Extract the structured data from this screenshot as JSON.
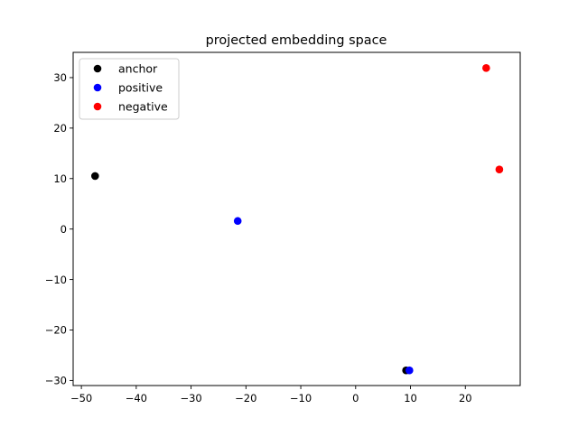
{
  "chart_data": {
    "type": "scatter",
    "title": "projected embedding space",
    "xlabel": "",
    "ylabel": "",
    "xlim": [
      -51.5,
      30.0
    ],
    "ylim": [
      -31.0,
      35.0
    ],
    "xticks": [
      -50,
      -40,
      -30,
      -20,
      -10,
      0,
      10,
      20
    ],
    "yticks": [
      -30,
      -20,
      -10,
      0,
      10,
      20,
      30
    ],
    "xtick_labels": [
      "−50",
      "−40",
      "−30",
      "−20",
      "−10",
      "0",
      "10",
      "20"
    ],
    "ytick_labels": [
      "−30",
      "−20",
      "−10",
      "0",
      "10",
      "20",
      "30"
    ],
    "grid": false,
    "legend_position": "top-left",
    "series": [
      {
        "name": "anchor",
        "color": "#000000",
        "points": [
          [
            -47.5,
            10.5
          ],
          [
            9.2,
            -28.0
          ]
        ]
      },
      {
        "name": "positive",
        "color": "#0000ff",
        "points": [
          [
            -21.5,
            1.6
          ],
          [
            9.8,
            -28.0
          ]
        ]
      },
      {
        "name": "negative",
        "color": "#ff0000",
        "points": [
          [
            23.8,
            31.9
          ],
          [
            26.2,
            11.8
          ]
        ]
      }
    ]
  }
}
